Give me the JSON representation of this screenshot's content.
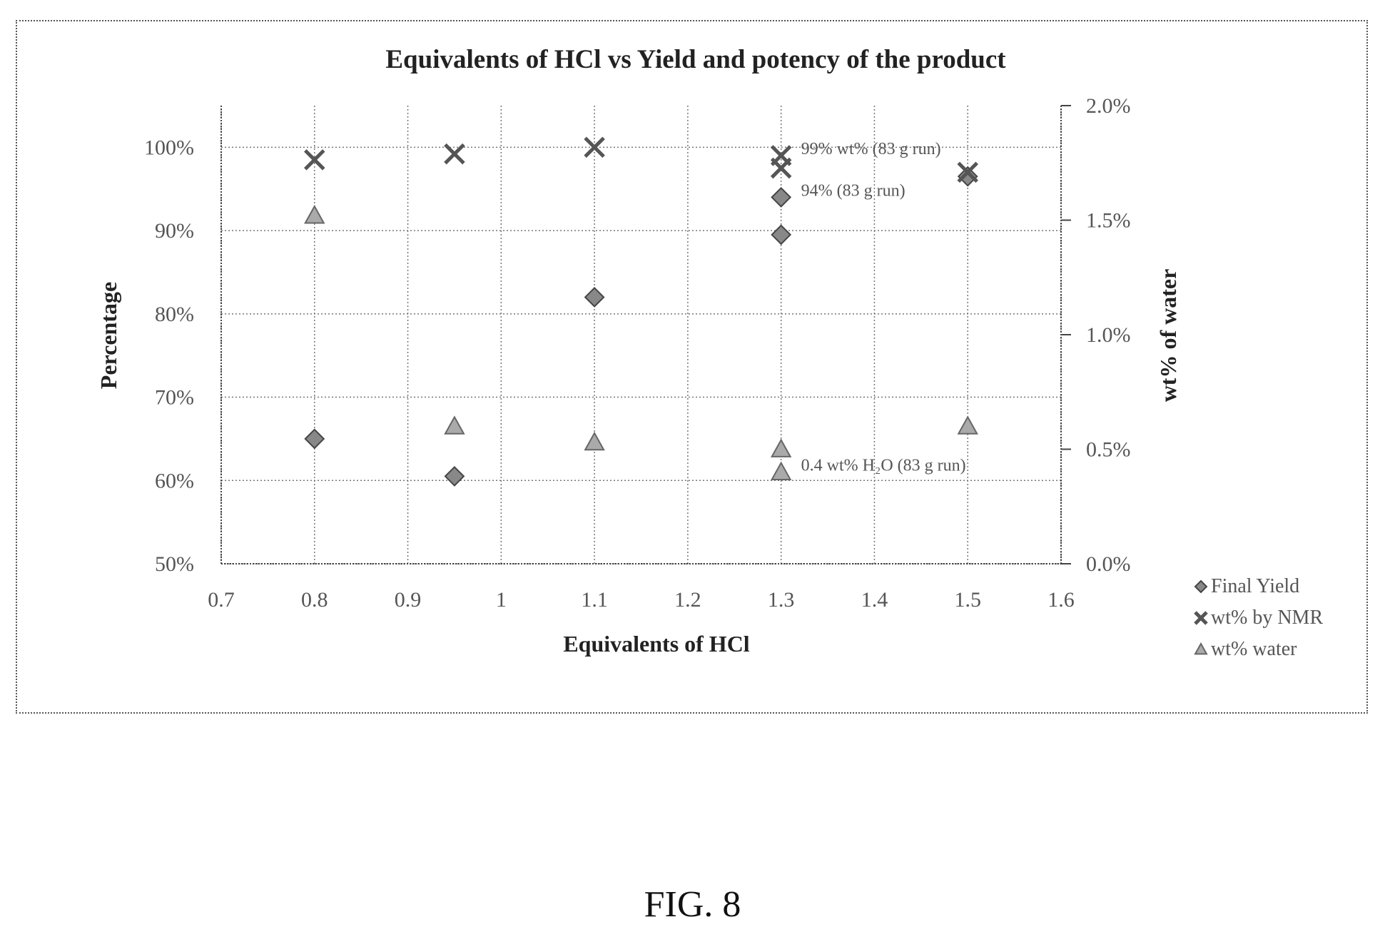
{
  "chart_data": {
    "type": "scatter",
    "title": "Equivalents of HCl vs Yield and potency of the product",
    "xlabel": "Equivalents of HCl",
    "ylabel": "Percentage",
    "y2label": "wt% of water",
    "xlim": [
      0.7,
      1.6
    ],
    "ylim": [
      50,
      105
    ],
    "y2lim": [
      0.0,
      2.0
    ],
    "x_ticks": [
      "0.7",
      "0.8",
      "0.9",
      "1",
      "1.1",
      "1.2",
      "1.3",
      "1.4",
      "1.5",
      "1.6"
    ],
    "y_ticks": [
      "50%",
      "60%",
      "70%",
      "80%",
      "90%",
      "100%"
    ],
    "y2_ticks": [
      "0.0%",
      "0.5%",
      "1.0%",
      "1.5%",
      "2.0%"
    ],
    "grid": true,
    "legend_position": "bottom-right",
    "series": [
      {
        "name": "Final Yield",
        "axis": "left",
        "marker": "diamond",
        "x": [
          0.8,
          0.95,
          1.1,
          1.3,
          1.3,
          1.5
        ],
        "y": [
          65,
          60.5,
          82,
          89.5,
          94,
          96.5
        ]
      },
      {
        "name": "wt% by NMR",
        "axis": "left",
        "marker": "cross",
        "x": [
          0.8,
          0.95,
          1.1,
          1.3,
          1.3,
          1.5
        ],
        "y": [
          98.5,
          99.2,
          100,
          97.5,
          99,
          97
        ]
      },
      {
        "name": "wt% water",
        "axis": "right",
        "marker": "triangle",
        "x": [
          0.8,
          0.95,
          1.1,
          1.3,
          1.3,
          1.5
        ],
        "y": [
          1.52,
          0.6,
          0.53,
          0.5,
          0.4,
          0.6
        ]
      }
    ],
    "annotations": [
      {
        "text": "99% wt% (83 g run)",
        "x": 1.3,
        "y": 99
      },
      {
        "text": "94% (83 g run)",
        "x": 1.3,
        "y": 94
      },
      {
        "text": "0.4 wt% H₂O (83 g run)",
        "x": 1.3,
        "y2": 0.4
      }
    ]
  },
  "figure_label": "FIG. 8"
}
